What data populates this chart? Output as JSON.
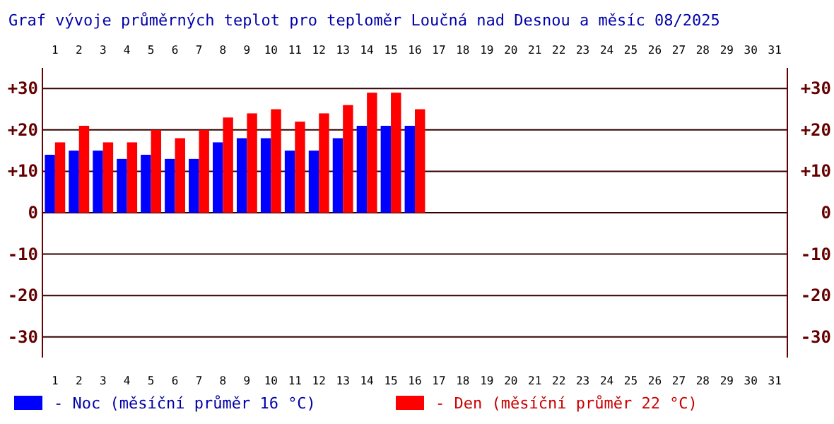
{
  "chart_data": {
    "type": "bar",
    "title": "Graf vývoje průměrných teplot pro teploměr Loučná nad Desnou a měsíc 08/2025",
    "categories": [
      "1",
      "2",
      "3",
      "4",
      "5",
      "6",
      "7",
      "8",
      "9",
      "10",
      "11",
      "12",
      "13",
      "14",
      "15",
      "16",
      "17",
      "18",
      "19",
      "20",
      "21",
      "22",
      "23",
      "24",
      "25",
      "26",
      "27",
      "28",
      "29",
      "30",
      "31"
    ],
    "series": [
      {
        "name": "- Noc (měsíční průměr 16 °C)",
        "color": "#0000ff",
        "values": [
          14,
          15,
          15,
          13,
          14,
          13,
          13,
          17,
          18,
          18,
          15,
          15,
          18,
          21,
          21,
          21,
          null,
          null,
          null,
          null,
          null,
          null,
          null,
          null,
          null,
          null,
          null,
          null,
          null,
          null,
          null
        ]
      },
      {
        "name": "- Den (měsíční průměr 22 °C)",
        "color": "#ff0000",
        "values": [
          17,
          21,
          17,
          17,
          20,
          18,
          20,
          23,
          24,
          25,
          22,
          24,
          26,
          29,
          29,
          25,
          null,
          null,
          null,
          null,
          null,
          null,
          null,
          null,
          null,
          null,
          null,
          null,
          null,
          null,
          null
        ]
      }
    ],
    "ylim": [
      -35,
      35
    ],
    "yticks": [
      {
        "value": 30,
        "label": "+30"
      },
      {
        "value": 20,
        "label": "+20"
      },
      {
        "value": 10,
        "label": "+10"
      },
      0,
      -10,
      -20,
      -30
    ],
    "y2lim": [
      -35,
      35
    ],
    "y2ticks": [
      {
        "value": 30,
        "label": "+30"
      },
      {
        "value": 20,
        "label": "+20"
      },
      {
        "value": 10,
        "label": "+10"
      },
      0,
      -10,
      -20,
      -30
    ],
    "grid": "y",
    "legend": "bottom"
  }
}
